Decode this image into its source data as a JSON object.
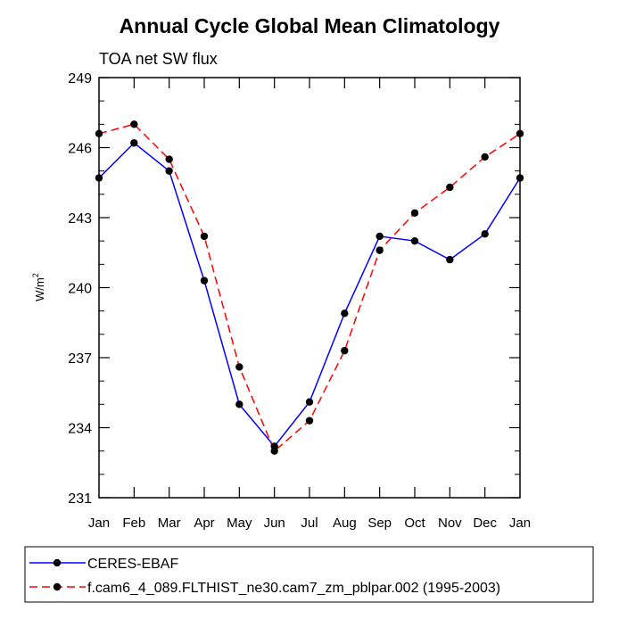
{
  "chart_data": {
    "type": "line",
    "title": "Annual Cycle Global Mean Climatology",
    "subtitle": "TOA net SW flux",
    "xlabel": "",
    "ylabel": "W/m",
    "ylabel_superscript": "2",
    "ylim": [
      231,
      249
    ],
    "yticks": [
      231,
      234,
      237,
      240,
      243,
      246,
      249
    ],
    "yminor_step": 1,
    "categories": [
      "Jan",
      "Feb",
      "Mar",
      "Apr",
      "May",
      "Jun",
      "Jul",
      "Aug",
      "Sep",
      "Oct",
      "Nov",
      "Dec",
      "Jan"
    ],
    "legend_position": "bottom",
    "series": [
      {
        "name": "CERES-EBAF",
        "color": "#0000ff",
        "dash": "solid",
        "values": [
          244.7,
          246.2,
          245.0,
          240.3,
          235.0,
          233.2,
          235.1,
          238.9,
          242.2,
          242.0,
          241.2,
          242.3,
          244.7
        ]
      },
      {
        "name": "f.cam6_4_089.FLTHIST_ne30.cam7_zm_pblpar.002 (1995-2003)",
        "color": "#ff0000",
        "dash": "dashed",
        "values": [
          246.6,
          247.0,
          245.5,
          242.2,
          236.6,
          233.0,
          234.3,
          237.3,
          241.6,
          243.2,
          244.3,
          245.6,
          246.6
        ]
      }
    ]
  }
}
